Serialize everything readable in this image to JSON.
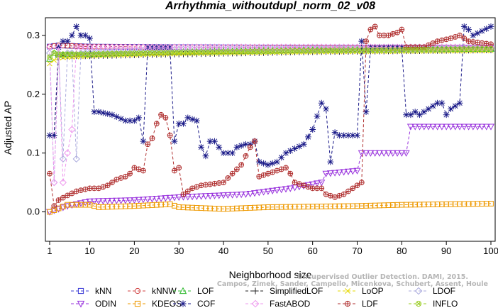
{
  "chart_data": {
    "type": "line",
    "title": "Arrhythmia_withoutdupl_norm_02_v08",
    "xlabel": "Neighborhood size",
    "ylabel": "Adjusted AP",
    "xlim": [
      1,
      100
    ],
    "ylim": [
      -0.05,
      0.33
    ],
    "x_ticks": [
      1,
      10,
      20,
      30,
      40,
      50,
      60,
      70,
      80,
      90,
      100
    ],
    "y_ticks": [
      0.0,
      0.1,
      0.2,
      0.3
    ],
    "y_tick_labels": [
      "0.0",
      "0.1",
      "0.2",
      "0.3"
    ],
    "grid": false,
    "legend_position": "bottom",
    "watermark": {
      "line1": "Unsupervised Outlier Detection. DAMI, 2015.",
      "line2": "Campos, Zimek, Sander, Campello, Micenkova, Schubert, Assent, Houle"
    },
    "series": [
      {
        "name": "kNN",
        "color": "#3b3bd6",
        "marker": "square",
        "keypoints": [
          [
            1,
            0.281
          ],
          [
            3,
            0.283
          ],
          [
            10,
            0.281
          ],
          [
            30,
            0.28
          ],
          [
            60,
            0.279
          ],
          [
            100,
            0.279
          ]
        ]
      },
      {
        "name": "kNNW",
        "color": "#d04040",
        "marker": "circle",
        "keypoints": [
          [
            1,
            0.281
          ],
          [
            3,
            0.283
          ],
          [
            10,
            0.281
          ],
          [
            30,
            0.28
          ],
          [
            60,
            0.279
          ],
          [
            100,
            0.279
          ]
        ]
      },
      {
        "name": "LOF",
        "color": "#33bb33",
        "marker": "triangle-up",
        "keypoints": [
          [
            1,
            0.26
          ],
          [
            2,
            0.27
          ],
          [
            3,
            0.267
          ],
          [
            10,
            0.268
          ],
          [
            30,
            0.272
          ],
          [
            60,
            0.275
          ],
          [
            100,
            0.277
          ]
        ]
      },
      {
        "name": "SimplifiedLOF",
        "color": "#222222",
        "marker": "plus",
        "keypoints": [
          [
            1,
            0.13
          ],
          [
            2,
            0.13
          ],
          [
            3,
            0.265
          ],
          [
            10,
            0.265
          ],
          [
            30,
            0.268
          ],
          [
            60,
            0.272
          ],
          [
            100,
            0.275
          ]
        ]
      },
      {
        "name": "LoOP",
        "color": "#e6d800",
        "marker": "cross",
        "keypoints": [
          [
            1,
            0.252
          ],
          [
            2,
            0.258
          ],
          [
            3,
            0.262
          ],
          [
            10,
            0.265
          ],
          [
            30,
            0.269
          ],
          [
            60,
            0.272
          ],
          [
            100,
            0.274
          ]
        ]
      },
      {
        "name": "LDOF",
        "color": "#aaaadd",
        "marker": "diamond",
        "keypoints": [
          [
            1,
            0.27
          ],
          [
            2,
            0.05
          ],
          [
            3,
            0.27
          ],
          [
            4,
            0.09
          ],
          [
            5,
            0.27
          ],
          [
            6,
            0.27
          ],
          [
            7,
            0.09
          ],
          [
            8,
            0.27
          ],
          [
            30,
            0.276
          ],
          [
            100,
            0.278
          ]
        ]
      },
      {
        "name": "ODIN",
        "color": "#9933dd",
        "marker": "triangle-down",
        "keypoints": [
          [
            1,
            0.0
          ],
          [
            5,
            0.01
          ],
          [
            10,
            0.018
          ],
          [
            20,
            0.02
          ],
          [
            30,
            0.025
          ],
          [
            45,
            0.03
          ],
          [
            55,
            0.04
          ],
          [
            62,
            0.05
          ],
          [
            63,
            0.065
          ],
          [
            70,
            0.07
          ],
          [
            71,
            0.1
          ],
          [
            81,
            0.1
          ],
          [
            82,
            0.145
          ],
          [
            100,
            0.145
          ]
        ]
      },
      {
        "name": "KDEOS",
        "color": "#ee9900",
        "marker": "square",
        "keypoints": [
          [
            1,
            0.0
          ],
          [
            5,
            0.012
          ],
          [
            10,
            0.012
          ],
          [
            12,
            0.008
          ],
          [
            20,
            0.01
          ],
          [
            28,
            0.013
          ],
          [
            30,
            0.008
          ],
          [
            40,
            0.005
          ],
          [
            50,
            0.008
          ],
          [
            70,
            0.01
          ],
          [
            80,
            0.012
          ],
          [
            100,
            0.014
          ]
        ]
      },
      {
        "name": "COF",
        "color": "#1a1a88",
        "marker": "asterisk",
        "keypoints": [
          [
            1,
            0.13
          ],
          [
            2,
            0.13
          ],
          [
            3,
            0.28
          ],
          [
            4,
            0.29
          ],
          [
            5,
            0.29
          ],
          [
            6,
            0.3
          ],
          [
            7,
            0.315
          ],
          [
            8,
            0.3
          ],
          [
            9,
            0.3
          ],
          [
            10,
            0.295
          ],
          [
            11,
            0.17
          ],
          [
            12,
            0.17
          ],
          [
            15,
            0.165
          ],
          [
            18,
            0.155
          ],
          [
            20,
            0.155
          ],
          [
            21,
            0.16
          ],
          [
            22,
            0.12
          ],
          [
            23,
            0.28
          ],
          [
            25,
            0.28
          ],
          [
            27,
            0.28
          ],
          [
            28,
            0.28
          ],
          [
            29,
            0.12
          ],
          [
            30,
            0.15
          ],
          [
            31,
            0.15
          ],
          [
            32,
            0.16
          ],
          [
            34,
            0.155
          ],
          [
            35,
            0.11
          ],
          [
            36,
            0.095
          ],
          [
            37,
            0.12
          ],
          [
            38,
            0.12
          ],
          [
            39,
            0.11
          ],
          [
            40,
            0.1
          ],
          [
            41,
            0.1
          ],
          [
            42,
            0.1
          ],
          [
            43,
            0.11
          ],
          [
            45,
            0.115
          ],
          [
            46,
            0.115
          ],
          [
            47,
            0.12
          ],
          [
            48,
            0.085
          ],
          [
            50,
            0.08
          ],
          [
            52,
            0.085
          ],
          [
            54,
            0.1
          ],
          [
            58,
            0.115
          ],
          [
            60,
            0.14
          ],
          [
            62,
            0.185
          ],
          [
            63,
            0.175
          ],
          [
            64,
            0.085
          ],
          [
            65,
            0.135
          ],
          [
            66,
            0.13
          ],
          [
            68,
            0.13
          ],
          [
            70,
            0.13
          ],
          [
            71,
            0.29
          ],
          [
            72,
            0.17
          ],
          [
            73,
            0.28
          ],
          [
            76,
            0.28
          ],
          [
            80,
            0.28
          ],
          [
            81,
            0.165
          ],
          [
            82,
            0.165
          ],
          [
            83,
            0.17
          ],
          [
            84,
            0.165
          ],
          [
            86,
            0.175
          ],
          [
            88,
            0.185
          ],
          [
            89,
            0.185
          ],
          [
            90,
            0.165
          ],
          [
            91,
            0.175
          ],
          [
            92,
            0.18
          ],
          [
            93,
            0.185
          ],
          [
            94,
            0.315
          ],
          [
            95,
            0.31
          ],
          [
            96,
            0.3
          ],
          [
            100,
            0.315
          ]
        ]
      },
      {
        "name": "FastABOD",
        "color": "#ee99ee",
        "marker": "diamond",
        "keypoints": [
          [
            1,
            0.28
          ],
          [
            2,
            0.05
          ],
          [
            3,
            0.28
          ],
          [
            4,
            0.05
          ],
          [
            5,
            0.1
          ],
          [
            6,
            0.14
          ],
          [
            7,
            0.28
          ],
          [
            100,
            0.28
          ]
        ]
      },
      {
        "name": "LDF",
        "color": "#b03030",
        "marker": "circle-plus",
        "keypoints": [
          [
            1,
            0.065
          ],
          [
            2,
            0.01
          ],
          [
            3,
            0.02
          ],
          [
            5,
            0.028
          ],
          [
            7,
            0.035
          ],
          [
            10,
            0.04
          ],
          [
            12,
            0.04
          ],
          [
            14,
            0.045
          ],
          [
            16,
            0.055
          ],
          [
            18,
            0.06
          ],
          [
            19,
            0.065
          ],
          [
            20,
            0.075
          ],
          [
            22,
            0.07
          ],
          [
            23,
            0.115
          ],
          [
            24,
            0.125
          ],
          [
            25,
            0.15
          ],
          [
            26,
            0.165
          ],
          [
            27,
            0.16
          ],
          [
            28,
            0.13
          ],
          [
            29,
            0.07
          ],
          [
            30,
            0.075
          ],
          [
            31,
            0.03
          ],
          [
            33,
            0.04
          ],
          [
            35,
            0.045
          ],
          [
            40,
            0.05
          ],
          [
            42,
            0.065
          ],
          [
            44,
            0.08
          ],
          [
            46,
            0.11
          ],
          [
            47,
            0.12
          ],
          [
            48,
            0.06
          ],
          [
            50,
            0.065
          ],
          [
            52,
            0.07
          ],
          [
            54,
            0.075
          ],
          [
            55,
            0.065
          ],
          [
            56,
            0.05
          ],
          [
            60,
            0.04
          ],
          [
            62,
            0.04
          ],
          [
            63,
            0.03
          ],
          [
            65,
            0.025
          ],
          [
            67,
            0.03
          ],
          [
            70,
            0.045
          ],
          [
            71,
            0.05
          ],
          [
            72,
            0.29
          ],
          [
            73,
            0.31
          ],
          [
            74,
            0.315
          ],
          [
            75,
            0.3
          ],
          [
            77,
            0.3
          ],
          [
            79,
            0.305
          ],
          [
            80,
            0.31
          ],
          [
            81,
            0.28
          ],
          [
            85,
            0.28
          ],
          [
            88,
            0.29
          ],
          [
            91,
            0.295
          ],
          [
            93,
            0.3
          ],
          [
            95,
            0.29
          ],
          [
            100,
            0.285
          ]
        ]
      },
      {
        "name": "INFLO",
        "color": "#99cc22",
        "marker": "circle-cross",
        "keypoints": [
          [
            1,
            0.263
          ],
          [
            2,
            0.27
          ],
          [
            3,
            0.268
          ],
          [
            10,
            0.268
          ],
          [
            30,
            0.271
          ],
          [
            60,
            0.274
          ],
          [
            100,
            0.277
          ]
        ]
      }
    ]
  }
}
